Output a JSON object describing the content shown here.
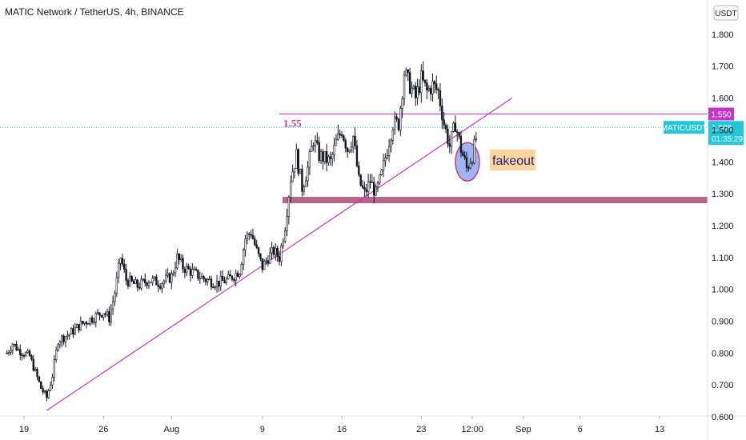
{
  "header": {
    "title": "MATIC Network / TetherUS, 4h, BINANCE",
    "currency_button": "USDT"
  },
  "colors": {
    "candle": "#131722",
    "trendline": "#c535c5",
    "support_band": "#b9648a",
    "resistance_line": "#c535c5",
    "price_line": "#26c6da",
    "fakeout_circle_fill": "#8fa8f0",
    "fakeout_circle_stroke": "#c2185b",
    "fakeout_label_bg": "#ffd59e"
  },
  "chart_data": {
    "type": "candlestick",
    "title": "MATIC Network / TetherUS, 4h, BINANCE",
    "price_axis": {
      "range": [
        0.56,
        1.82
      ],
      "ticks": [
        "1.800",
        "1.700",
        "1.600",
        "1.500",
        "1.400",
        "1.300",
        "1.200",
        "1.100",
        "1.000",
        "0.900",
        "0.800",
        "0.700",
        "0.600"
      ]
    },
    "time_axis": {
      "range_days": [
        "Jul 19",
        "Sep 13"
      ],
      "ticks": [
        {
          "label": "19",
          "date": "2021-07-19"
        },
        {
          "label": "26",
          "date": "2021-07-26"
        },
        {
          "label": "Aug",
          "date": "2021-08-01"
        },
        {
          "label": "9",
          "date": "2021-08-09"
        },
        {
          "label": "16",
          "date": "2021-08-16"
        },
        {
          "label": "23",
          "date": "2021-08-23"
        },
        {
          "label": "12:00",
          "date": "2021-08-27 12:00"
        },
        {
          "label": "Sep",
          "date": "2021-09-01"
        },
        {
          "label": "6",
          "date": "2021-09-06"
        },
        {
          "label": "13",
          "date": "2021-09-13"
        }
      ]
    },
    "close_path": [
      [
        "2021-07-17 12:00",
        0.8
      ],
      [
        "2021-07-18 00:00",
        0.83
      ],
      [
        "2021-07-18 12:00",
        0.81
      ],
      [
        "2021-07-19 00:00",
        0.8
      ],
      [
        "2021-07-19 12:00",
        0.79
      ],
      [
        "2021-07-20 00:00",
        0.74
      ],
      [
        "2021-07-20 12:00",
        0.69
      ],
      [
        "2021-07-21 00:00",
        0.66
      ],
      [
        "2021-07-21 12:00",
        0.73
      ],
      [
        "2021-07-22 00:00",
        0.84
      ],
      [
        "2021-07-23 00:00",
        0.86
      ],
      [
        "2021-07-24 00:00",
        0.89
      ],
      [
        "2021-07-25 00:00",
        0.91
      ],
      [
        "2021-07-26 00:00",
        0.93
      ],
      [
        "2021-07-26 12:00",
        0.91
      ],
      [
        "2021-07-27 00:00",
        0.99
      ],
      [
        "2021-07-27 12:00",
        1.1
      ],
      [
        "2021-07-28 00:00",
        1.03
      ],
      [
        "2021-07-29 00:00",
        1.01
      ],
      [
        "2021-07-30 00:00",
        1.03
      ],
      [
        "2021-07-31 00:00",
        1.02
      ],
      [
        "2021-08-01 00:00",
        1.04
      ],
      [
        "2021-08-01 12:00",
        1.1
      ],
      [
        "2021-08-02 00:00",
        1.07
      ],
      [
        "2021-08-03 00:00",
        1.05
      ],
      [
        "2021-08-04 00:00",
        1.03
      ],
      [
        "2021-08-05 00:00",
        1.02
      ],
      [
        "2021-08-06 00:00",
        1.03
      ],
      [
        "2021-08-07 00:00",
        1.06
      ],
      [
        "2021-08-07 12:00",
        1.16
      ],
      [
        "2021-08-08 00:00",
        1.18
      ],
      [
        "2021-08-08 12:00",
        1.12
      ],
      [
        "2021-08-09 00:00",
        1.07
      ],
      [
        "2021-08-09 12:00",
        1.1
      ],
      [
        "2021-08-10 00:00",
        1.12
      ],
      [
        "2021-08-10 12:00",
        1.1
      ],
      [
        "2021-08-11 00:00",
        1.2
      ],
      [
        "2021-08-11 12:00",
        1.35
      ],
      [
        "2021-08-12 00:00",
        1.42
      ],
      [
        "2021-08-12 12:00",
        1.32
      ],
      [
        "2021-08-13 00:00",
        1.38
      ],
      [
        "2021-08-13 12:00",
        1.47
      ],
      [
        "2021-08-14 00:00",
        1.42
      ],
      [
        "2021-08-15 00:00",
        1.4
      ],
      [
        "2021-08-15 12:00",
        1.46
      ],
      [
        "2021-08-16 00:00",
        1.5
      ],
      [
        "2021-08-16 12:00",
        1.44
      ],
      [
        "2021-08-17 00:00",
        1.48
      ],
      [
        "2021-08-17 12:00",
        1.34
      ],
      [
        "2021-08-18 00:00",
        1.3
      ],
      [
        "2021-08-18 12:00",
        1.34
      ],
      [
        "2021-08-19 00:00",
        1.3
      ],
      [
        "2021-08-19 12:00",
        1.36
      ],
      [
        "2021-08-20 00:00",
        1.44
      ],
      [
        "2021-08-20 12:00",
        1.52
      ],
      [
        "2021-08-21 00:00",
        1.52
      ],
      [
        "2021-08-21 12:00",
        1.68
      ],
      [
        "2021-08-22 00:00",
        1.64
      ],
      [
        "2021-08-22 12:00",
        1.6
      ],
      [
        "2021-08-23 00:00",
        1.66
      ],
      [
        "2021-08-23 12:00",
        1.62
      ],
      [
        "2021-08-24 00:00",
        1.64
      ],
      [
        "2021-08-24 12:00",
        1.62
      ],
      [
        "2021-08-25 00:00",
        1.52
      ],
      [
        "2021-08-25 12:00",
        1.45
      ],
      [
        "2021-08-26 00:00",
        1.52
      ],
      [
        "2021-08-26 12:00",
        1.44
      ],
      [
        "2021-08-27 00:00",
        1.38
      ],
      [
        "2021-08-27 12:00",
        1.42
      ],
      [
        "2021-08-28 00:00",
        1.5
      ]
    ],
    "last_price": "1.508",
    "countdown": "01:35:29",
    "symbol": "MATICUSDT",
    "annotations": {
      "resistance_level": 1.55,
      "resistance_label": "1.55",
      "resistance_badge": "1.550",
      "support_band": [
        1.27,
        1.29
      ],
      "trendline": {
        "from": [
          "2021-07-21 00:00",
          0.62
        ],
        "to": [
          "2021-08-31 00:00",
          1.6
        ]
      },
      "fakeout_label": "fakeout",
      "fakeout_zone": [
        "2021-08-26 12:00",
        1.4
      ]
    }
  }
}
